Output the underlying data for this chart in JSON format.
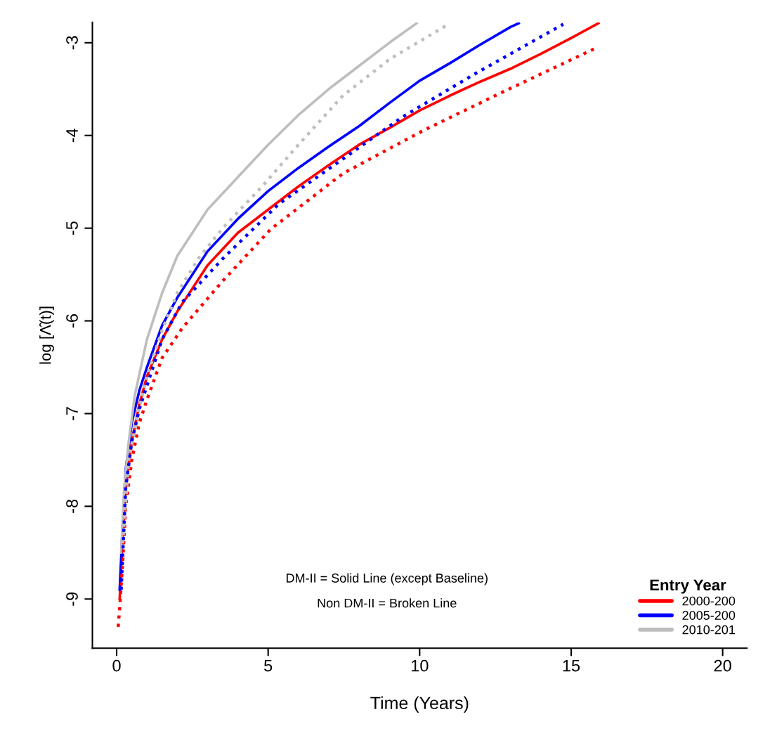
{
  "chart_data": {
    "type": "line",
    "xlabel": "Time (Years)",
    "ylabel": "log [Λ̂(t)]",
    "legend_title": "Entry Year",
    "legend": "bottom right",
    "grid": false,
    "marker": "none",
    "xlim": [
      -0.8,
      20.8
    ],
    "ylim": [
      -9.53,
      -2.78
    ],
    "xticks": [
      0,
      5,
      10,
      15,
      20
    ],
    "yticks": [
      -9,
      -8,
      -7,
      -6,
      -5,
      -4,
      -3
    ],
    "annotations": [
      "DM-II = Solid Line (except Baseline)",
      "Non DM-II = Broken Line"
    ],
    "series": [
      {
        "name": "2000-200",
        "color": "#ff0000",
        "line_style": "solid",
        "x": [
          0.1,
          0.2,
          0.3,
          0.5,
          0.75,
          1,
          1.5,
          2,
          3,
          4,
          5,
          6,
          7,
          8,
          9,
          10,
          11,
          12,
          13,
          14,
          15,
          15.9
        ],
        "values": [
          -9.0,
          -8.3,
          -7.8,
          -7.3,
          -6.9,
          -6.6,
          -6.2,
          -5.9,
          -5.4,
          -5.05,
          -4.8,
          -4.55,
          -4.32,
          -4.1,
          -3.92,
          -3.73,
          -3.57,
          -3.42,
          -3.28,
          -3.12,
          -2.95,
          -2.79
        ]
      },
      {
        "name": "2005-200",
        "color": "#0000ff",
        "line_style": "solid",
        "x": [
          0.1,
          0.2,
          0.3,
          0.5,
          0.75,
          1,
          1.5,
          2,
          3,
          4,
          5,
          6,
          7,
          8,
          9,
          10,
          11,
          12,
          13,
          13.27
        ],
        "values": [
          -8.9,
          -8.2,
          -7.6,
          -7.1,
          -6.75,
          -6.5,
          -6.05,
          -5.75,
          -5.25,
          -4.9,
          -4.6,
          -4.35,
          -4.12,
          -3.9,
          -3.65,
          -3.41,
          -3.22,
          -3.02,
          -2.83,
          -2.79
        ]
      },
      {
        "name": "2010-201",
        "color": "#bebebe",
        "line_style": "solid",
        "x": [
          0.15,
          0.25,
          0.4,
          0.6,
          1,
          1.5,
          2,
          3,
          4,
          5,
          6,
          7,
          8,
          9,
          9.9
        ],
        "values": [
          -8.5,
          -7.8,
          -7.3,
          -6.8,
          -6.2,
          -5.7,
          -5.3,
          -4.8,
          -4.45,
          -4.1,
          -3.78,
          -3.5,
          -3.25,
          -3.0,
          -2.79
        ]
      },
      {
        "color": "#ff0000",
        "line_style": "dotted",
        "x": [
          0.05,
          0.1,
          0.2,
          0.3,
          0.5,
          0.75,
          1,
          1.5,
          2.16,
          3.5,
          5.09,
          7.47,
          10.1,
          12.75,
          15.8
        ],
        "values": [
          -9.3,
          -9.1,
          -8.6,
          -8.0,
          -7.5,
          -7.1,
          -6.85,
          -6.4,
          -6.08,
          -5.57,
          -5.01,
          -4.41,
          -3.95,
          -3.53,
          -3.06
        ]
      },
      {
        "color": "#0000ff",
        "line_style": "dotted",
        "x": [
          0.15,
          0.3,
          0.5,
          0.75,
          1,
          1.5,
          2.16,
          3.5,
          5.35,
          7.18,
          9.43,
          11.8,
          14.74
        ],
        "values": [
          -8.9,
          -7.8,
          -7.3,
          -6.95,
          -6.7,
          -6.2,
          -5.8,
          -5.33,
          -4.74,
          -4.32,
          -3.8,
          -3.34,
          -2.8
        ]
      },
      {
        "color": "#bebebe",
        "line_style": "dotted",
        "x": [
          0.2,
          0.4,
          0.7,
          1,
          1.5,
          2,
          2.69,
          3.5,
          4.8,
          6,
          7.47,
          9,
          10.9
        ],
        "values": [
          -8.4,
          -7.5,
          -7.0,
          -6.6,
          -6.1,
          -5.7,
          -5.33,
          -5.0,
          -4.55,
          -4.1,
          -3.57,
          -3.18,
          -2.81
        ]
      }
    ]
  }
}
